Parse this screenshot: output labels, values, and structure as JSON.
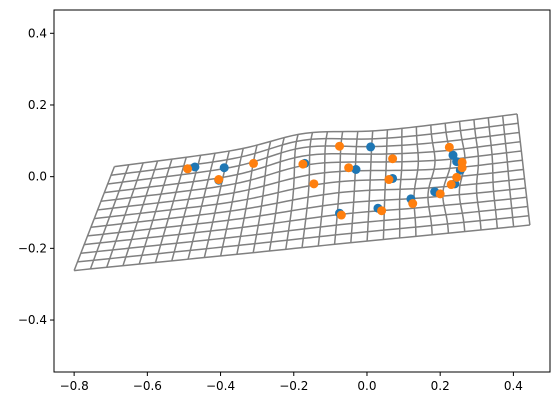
{
  "chart_data": {
    "type": "scatter",
    "title": "",
    "xlabel": "",
    "ylabel": "",
    "xlim": [
      -0.855,
      0.5
    ],
    "ylim": [
      -0.545,
      0.465
    ],
    "grid": false,
    "xticks": [
      -0.8,
      -0.6,
      -0.4,
      -0.2,
      0.0,
      0.2,
      0.4
    ],
    "xtick_labels": [
      "−0.8",
      "−0.6",
      "−0.4",
      "−0.2",
      "0.0",
      "0.2",
      "0.4"
    ],
    "yticks": [
      0.4,
      0.2,
      0.0,
      -0.2,
      -0.4
    ],
    "ytick_labels": [
      "0.4",
      "0.2",
      "0.0",
      "−0.2",
      "−0.4"
    ],
    "mesh": {
      "color": "#808080",
      "description_free": true,
      "corners": {
        "bottom_left": [
          -0.8,
          -0.262
        ],
        "top_left": [
          -0.69,
          0.028
        ],
        "top_right": [
          0.41,
          0.175
        ],
        "bottom_right": [
          0.445,
          -0.135
        ]
      },
      "rows": 12,
      "cols": 28
    },
    "series": [
      {
        "color": "#1f77b4",
        "points": [
          [
            -0.47,
            0.027
          ],
          [
            -0.39,
            0.025
          ],
          [
            -0.405,
            -0.01
          ],
          [
            -0.17,
            0.037
          ],
          [
            -0.03,
            0.02
          ],
          [
            0.01,
            0.083
          ],
          [
            0.07,
            -0.005
          ],
          [
            -0.075,
            -0.102
          ],
          [
            0.03,
            -0.088
          ],
          [
            0.12,
            -0.062
          ],
          [
            0.185,
            -0.042
          ],
          [
            0.235,
            0.06
          ],
          [
            0.245,
            0.042
          ],
          [
            0.255,
            0.018
          ],
          [
            0.24,
            -0.02
          ]
        ]
      },
      {
        "color": "#ff7f0e",
        "points": [
          [
            -0.49,
            0.022
          ],
          [
            -0.405,
            -0.008
          ],
          [
            -0.31,
            0.037
          ],
          [
            -0.175,
            0.035
          ],
          [
            -0.145,
            -0.02
          ],
          [
            -0.075,
            0.085
          ],
          [
            -0.05,
            0.025
          ],
          [
            0.06,
            -0.008
          ],
          [
            0.07,
            0.05
          ],
          [
            -0.07,
            -0.107
          ],
          [
            0.04,
            -0.095
          ],
          [
            0.125,
            -0.075
          ],
          [
            0.2,
            -0.048
          ],
          [
            0.225,
            0.082
          ],
          [
            0.26,
            0.04
          ],
          [
            0.26,
            0.025
          ],
          [
            0.245,
            -0.002
          ],
          [
            0.23,
            -0.022
          ]
        ]
      }
    ]
  }
}
